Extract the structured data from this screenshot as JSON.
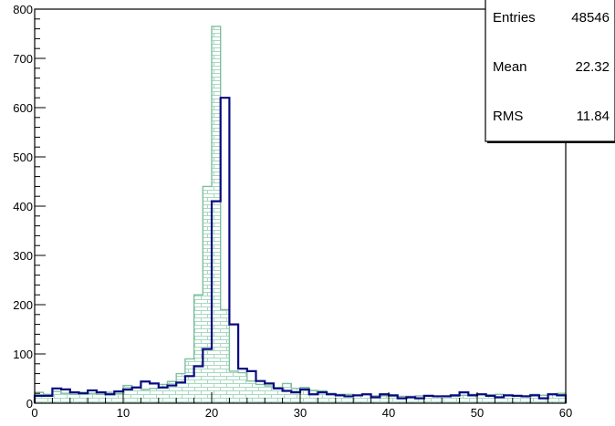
{
  "chart_data": {
    "type": "bar",
    "title": "",
    "xlabel": "",
    "ylabel": "",
    "xlim": [
      0,
      60
    ],
    "ylim": [
      0,
      800
    ],
    "bin_width": 1,
    "x_ticks": [
      0,
      10,
      20,
      30,
      40,
      50,
      60
    ],
    "y_ticks": [
      0,
      100,
      200,
      300,
      400,
      500,
      600,
      700,
      800
    ],
    "grid": false,
    "legend": "none",
    "stats_box": {
      "position": "top-right",
      "rows": [
        {
          "label": "Entries",
          "value": "48546"
        },
        {
          "label": "Mean",
          "value": "22.32"
        },
        {
          "label": "RMS",
          "value": "11.84"
        }
      ]
    },
    "series": [
      {
        "style": "hatched-fill",
        "color": "#7fbf9f",
        "values": [
          22,
          18,
          24,
          20,
          18,
          22,
          20,
          18,
          22,
          20,
          36,
          32,
          28,
          30,
          38,
          44,
          60,
          90,
          220,
          440,
          765,
          190,
          65,
          62,
          45,
          38,
          35,
          32,
          40,
          30,
          32,
          26,
          25,
          20,
          18,
          18,
          16,
          18,
          15,
          15,
          14,
          14,
          14,
          15,
          15,
          14,
          15,
          14,
          16,
          18,
          18,
          17,
          18,
          16,
          15,
          15,
          18,
          16,
          18,
          20
        ]
      },
      {
        "style": "line",
        "color": "#0a0a80",
        "values": [
          15,
          15,
          30,
          28,
          22,
          20,
          26,
          22,
          18,
          24,
          28,
          32,
          44,
          40,
          32,
          36,
          42,
          55,
          75,
          110,
          410,
          620,
          160,
          70,
          65,
          45,
          40,
          30,
          25,
          22,
          28,
          18,
          22,
          18,
          16,
          14,
          16,
          18,
          12,
          18,
          16,
          10,
          12,
          10,
          15,
          14,
          14,
          16,
          22,
          16,
          18,
          15,
          12,
          16,
          15,
          14,
          16,
          10,
          18,
          16
        ]
      }
    ]
  }
}
